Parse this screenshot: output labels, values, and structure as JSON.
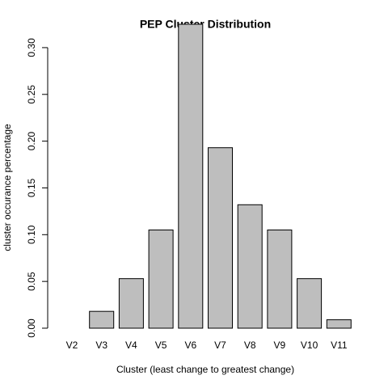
{
  "chart_data": {
    "type": "bar",
    "title": "PEP Cluster Distribution",
    "x_label": "Cluster (least change to greatest change)",
    "y_label": "cluster occurance percentage",
    "categories": [
      "V2",
      "V3",
      "V4",
      "V5",
      "V6",
      "V7",
      "V8",
      "V9",
      "V10",
      "V11"
    ],
    "values": [
      0,
      0.018,
      0.053,
      0.105,
      0.325,
      0.193,
      0.132,
      0.105,
      0.053,
      0.009
    ],
    "color": "#bebebe",
    "ylim": [
      0,
      0.325
    ],
    "yticks": [
      {
        "value": 0,
        "label": "0.00"
      },
      {
        "value": 0.05,
        "label": "0.05"
      },
      {
        "value": 0.1,
        "label": "0.10"
      },
      {
        "value": 0.15,
        "label": "0.15"
      },
      {
        "value": 0.2,
        "label": "0.20"
      },
      {
        "value": 0.25,
        "label": "0.25"
      },
      {
        "value": 0.3,
        "label": "0.30"
      }
    ],
    "grid": false
  }
}
